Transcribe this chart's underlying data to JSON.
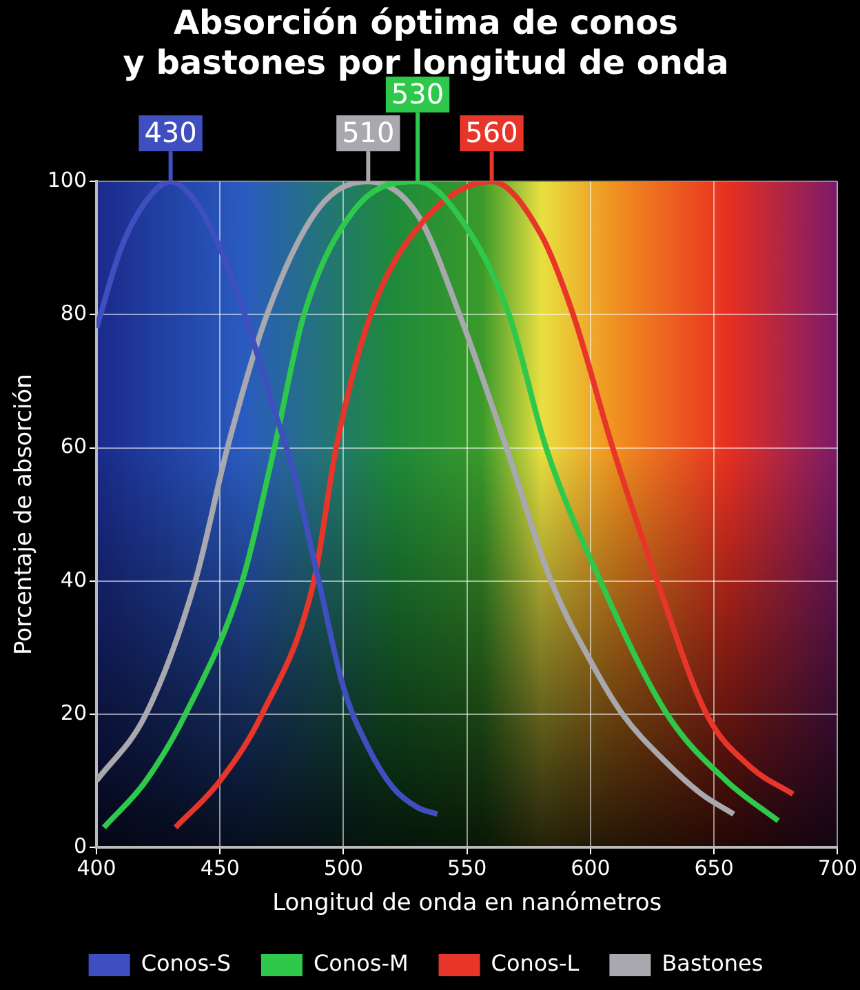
{
  "chart_data": {
    "type": "line",
    "title": "Absorción óptima de conos\ny bastones por longitud de onda",
    "xlabel": "Longitud de onda en nanómetros",
    "ylabel": "Porcentaje de absorción",
    "xlim": [
      400,
      700
    ],
    "xticks": [
      400,
      450,
      500,
      550,
      600,
      650,
      700
    ],
    "ylim": [
      0,
      100
    ],
    "yticks": [
      0,
      20,
      40,
      60,
      80,
      100
    ],
    "grid": true,
    "legend": "bottom",
    "marker": "none",
    "line_style": "solid",
    "series": [
      {
        "name": "Conos-S",
        "color": "#3f4fc0",
        "x": [
          400,
          410,
          420,
          430,
          440,
          450,
          460,
          470,
          480,
          490,
          500,
          510,
          520,
          530,
          538
        ],
        "values": [
          78,
          90,
          97,
          100,
          97,
          90,
          80,
          68,
          56,
          40,
          24,
          15,
          9,
          6,
          5
        ]
      },
      {
        "name": "Conos-M",
        "color": "#2ec84a",
        "x": [
          403,
          420,
          436,
          459,
          472,
          484,
          505,
          530,
          550,
          567,
          582,
          604,
          631,
          655,
          676
        ],
        "values": [
          3,
          10,
          20,
          40,
          60,
          80,
          96,
          100,
          93,
          80,
          60,
          40,
          20,
          10,
          4
        ]
      },
      {
        "name": "Conos-L",
        "color": "#e8352a",
        "x": [
          432,
          450,
          467,
          488,
          497,
          511,
          530,
          560,
          580,
          593,
          609,
          627,
          647,
          665,
          682
        ],
        "values": [
          3,
          10,
          20,
          40,
          60,
          80,
          93,
          100,
          92,
          80,
          60,
          40,
          20,
          12,
          8
        ]
      },
      {
        "name": "Bastones",
        "color": "#a8a8ae",
        "x": [
          400,
          420,
          440,
          453,
          469,
          490,
          510,
          530,
          547,
          566,
          584,
          600,
          613,
          630,
          645,
          658
        ],
        "values": [
          10,
          20,
          40,
          60,
          80,
          96,
          100,
          95,
          80,
          60,
          40,
          28,
          20,
          13,
          8,
          5
        ]
      }
    ],
    "annotations": [
      {
        "text": "430",
        "x": 430,
        "y": 100
      },
      {
        "text": "510",
        "x": 510,
        "y": 100
      },
      {
        "text": "530",
        "x": 530,
        "y": 100
      },
      {
        "text": "560",
        "x": 560,
        "y": 100
      }
    ]
  }
}
